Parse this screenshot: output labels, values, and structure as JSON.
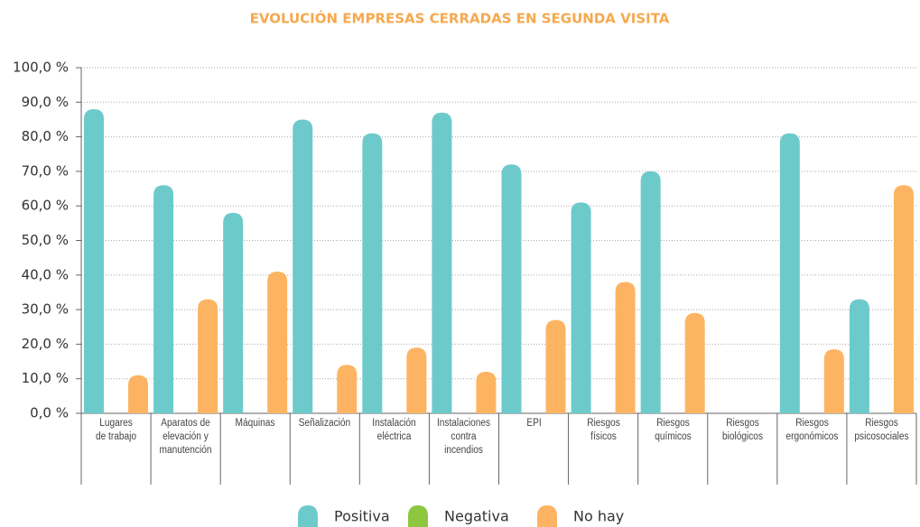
{
  "chart_data": {
    "type": "bar",
    "title": "EVOLUCIÓN EMPRESAS CERRADAS EN SEGUNDA VISITA",
    "categories": [
      "Lugares\nde trabajo",
      "Aparatos de\nelevación y\nmanutención",
      "Máquinas",
      "Señalización",
      "Instalación\neléctrica",
      "Instalaciones\ncontra\nincendios",
      "EPI",
      "Riesgos\nfísicos",
      "Riesgos\nquímicos",
      "Riesgos\nbiológicos",
      "Riesgos\nergonómicos",
      "Riesgos\npsicosociales"
    ],
    "series": [
      {
        "name": "Positiva",
        "color": "#6dcaca",
        "values": [
          88,
          66,
          58,
          85,
          81,
          87,
          72,
          61,
          70,
          0,
          81,
          33
        ]
      },
      {
        "name": "Negativa",
        "color": "#8dc63f",
        "values": [
          0,
          0,
          0,
          0,
          0,
          0,
          0,
          0,
          0,
          0,
          0,
          0
        ]
      },
      {
        "name": "No hay",
        "color": "#fdb462",
        "values": [
          11,
          33,
          41,
          14,
          19,
          12,
          27,
          38,
          29,
          0,
          18.5,
          66
        ]
      }
    ],
    "ylim": [
      0,
      100
    ],
    "yticks": [
      {
        "value": 0,
        "label": "0,0 %"
      },
      {
        "value": 10,
        "label": "10,0 %"
      },
      {
        "value": 20,
        "label": "20,0 %"
      },
      {
        "value": 30,
        "label": "30,0 %"
      },
      {
        "value": 40,
        "label": "40,0 %"
      },
      {
        "value": 50,
        "label": "50,0 %"
      },
      {
        "value": 60,
        "label": "60,0 %"
      },
      {
        "value": 70,
        "label": "70,0 %"
      },
      {
        "value": 80,
        "label": "80,0 %"
      },
      {
        "value": 90,
        "label": "90,0 %"
      },
      {
        "value": 100,
        "label": "100,0 %"
      }
    ],
    "grid": true
  }
}
